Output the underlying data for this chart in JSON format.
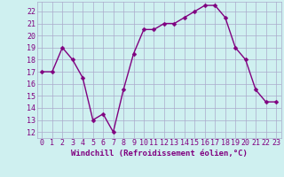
{
  "x": [
    0,
    1,
    2,
    3,
    4,
    5,
    6,
    7,
    8,
    9,
    10,
    11,
    12,
    13,
    14,
    15,
    16,
    17,
    18,
    19,
    20,
    21,
    22,
    23
  ],
  "y": [
    17,
    17,
    19,
    18,
    16.5,
    13,
    13.5,
    12,
    15.5,
    18.5,
    20.5,
    20.5,
    21,
    21,
    21.5,
    22,
    22.5,
    22.5,
    21.5,
    19,
    18,
    15.5,
    14.5,
    14.5
  ],
  "line_color": "#800080",
  "marker_color": "#800080",
  "background_color": "#cff0f0",
  "grid_color": "#aaaacc",
  "xlabel": "Windchill (Refroidissement éolien,°C)",
  "xlim": [
    -0.5,
    23.5
  ],
  "ylim": [
    11.5,
    22.8
  ],
  "yticks": [
    12,
    13,
    14,
    15,
    16,
    17,
    18,
    19,
    20,
    21,
    22
  ],
  "xticks": [
    0,
    1,
    2,
    3,
    4,
    5,
    6,
    7,
    8,
    9,
    10,
    11,
    12,
    13,
    14,
    15,
    16,
    17,
    18,
    19,
    20,
    21,
    22,
    23
  ],
  "xlabel_fontsize": 6.5,
  "tick_fontsize": 6,
  "line_width": 1.0,
  "marker_size": 2.5
}
